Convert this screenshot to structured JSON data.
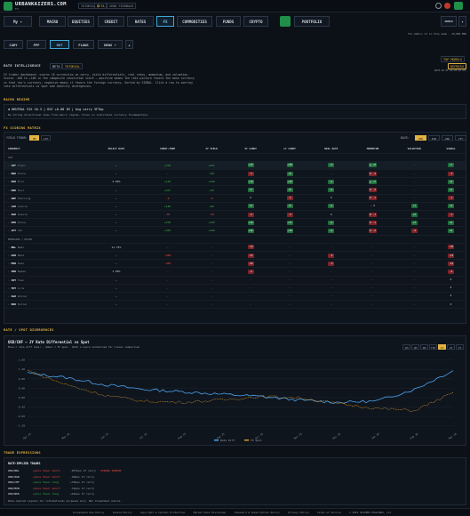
{
  "brand": {
    "name": "URBANKAIZERS.COM",
    "sub": "FX",
    "tags": [
      "TUTORIAL",
      "BETA",
      "SEND FEEDBACK"
    ]
  },
  "header": {
    "user_label": "ADMIN",
    "dropdown": "My"
  },
  "nav": [
    "MACRO",
    "EQUITIES",
    "CREDIT",
    "RATES",
    "FX",
    "COMMODITIES",
    "FUNDS",
    "CRYPTO"
  ],
  "nav_active": "FX",
  "portfolio_label": "PORTFOLIO",
  "status_line": "For Admin: 17 in this week · 19,000 ERK",
  "tabs": [
    "CARY",
    "PPP",
    "ROT",
    "FLOWS",
    "NEWS"
  ],
  "tab_active": "ROT",
  "rate_intel": {
    "title": "RATE INTELLIGENCE",
    "badges": [
      "BETA",
      "TUTORIAL"
    ],
    "desc": "FX trader dashboard: scores 18 currencies on carry, yield differentials, real rates, momentum, and valuation. Scores -100 to +100 in the composite conviction score — positive means the rate picture favors the base currency vs that row's currency; negative means it favors the foreign currency. Sorted by SIGNAL. Click a row to overlay rate differentials vs spot and identify divergences.",
    "right": [
      "TOP MODELS",
      "REFRESH"
    ],
    "updated": "DATA AS OF 02:43:10 UTC"
  },
  "macro_regime": {
    "title": "MACRO REGIME",
    "line": "NEUTRAL  VIX 16.3 | DXY +0.08 1M | Avg carry 3F7bp",
    "sub": "No strong directional bias from macro regime. Focus on individual currency fundamentals."
  },
  "matrix": {
    "title": "FX SCORING MATRIX",
    "yield_tenor_label": "YIELD TENOR:",
    "tenors": [
      "3M",
      "10Y"
    ],
    "base_label": "BASE:",
    "bases": [
      "USD",
      "EUR",
      "GBP",
      "JPY"
    ],
    "columns": [
      "CURRENCY",
      "POLICY RATE",
      "SHORT-TERM",
      "2Y YIELD",
      "ST CARRY",
      "LT CARRY",
      "REAL RATE",
      "MOMENTUM",
      "VALUATION",
      "SIGNAL"
    ],
    "group1": "G10",
    "group2": "EMERGING / MAJOR",
    "rows": [
      {
        "ccy": "CHF",
        "name": "Franc",
        "policy": "—",
        "short": "+276",
        "y2": "+351",
        "st": "+33",
        "lt": "+38",
        "real": "+3",
        "mom": "▲ +8",
        "val": "—",
        "sig": "+7"
      },
      {
        "ccy": "NOK",
        "name": "Krone",
        "policy": "—",
        "short": "—",
        "y2": "+58",
        "st": "-3",
        "lt": "+8",
        "real": "—",
        "mom": "▼ -4",
        "val": "—",
        "sig": "-3"
      },
      {
        "ccy": "EUR",
        "name": "Euro",
        "policy": "2.00%",
        "short": "+162",
        "y2": "+228",
        "st": "+14",
        "lt": "+18",
        "real": "+1",
        "mom": "▲ +2",
        "val": "—",
        "sig": "+6"
      },
      {
        "ccy": "NZD",
        "name": "Kiwi",
        "policy": "—",
        "short": "+017",
        "y2": "+20",
        "st": "+3",
        "lt": "+6",
        "real": "+1",
        "mom": "▼ -2",
        "val": "—",
        "sig": "+2"
      },
      {
        "ccy": "GBP",
        "name": "Sterling",
        "policy": "—",
        "short": "-9",
        "y2": "-9",
        "st": "0",
        "lt": "-1",
        "real": "0",
        "mom": "▼ -1",
        "val": "—",
        "sig": "-1"
      },
      {
        "ccy": "CAD",
        "name": "Loonie",
        "policy": "—",
        "short": "+146",
        "y2": "+90",
        "st": "+9",
        "lt": "+5",
        "real": "+1",
        "mom": "— 0",
        "val": "+1",
        "sig": "+4"
      },
      {
        "ccy": "AUD",
        "name": "Aussie",
        "policy": "—",
        "short": "-36",
        "y2": "-30",
        "st": "-2",
        "lt": "-3",
        "real": "0",
        "mom": "▼ -1",
        "val": "+2",
        "sig": "-1"
      },
      {
        "ccy": "SEK",
        "name": "Krona",
        "policy": "—",
        "short": "+270",
        "y2": "+259",
        "st": "+16",
        "lt": "+17",
        "real": "+2",
        "mom": "▼ -1",
        "val": "+3",
        "sig": "+6"
      },
      {
        "ccy": "JPY",
        "name": "Yen",
        "policy": "—",
        "short": "+363",
        "y2": "+340",
        "st": "+22",
        "lt": "+19",
        "real": "+4",
        "mom": "▼ -2",
        "val": "-4",
        "sig": "+6"
      }
    ],
    "rows2": [
      {
        "ccy": "BRL",
        "name": "Real",
        "policy": "11.75%",
        "short": "—",
        "y2": "—",
        "st": "-13",
        "lt": "—",
        "real": "—",
        "mom": "—",
        "val": "—",
        "sig": "-10"
      },
      {
        "ccy": "ZAR",
        "name": "Rand",
        "policy": "—",
        "short": "-283",
        "y2": "—",
        "st": "-17",
        "lt": "—",
        "real": "-5",
        "mom": "—",
        "val": "—",
        "sig": "-13"
      },
      {
        "ccy": "MXN",
        "name": "Peso",
        "policy": "—",
        "short": "-363",
        "y2": "—",
        "st": "-22",
        "lt": "—",
        "real": "-3",
        "mom": "—",
        "val": "—",
        "sig": "-14"
      },
      {
        "ccy": "INR",
        "name": "Rupee",
        "policy": "1.00%",
        "short": "—",
        "y2": "—",
        "st": "-2",
        "lt": "—",
        "real": "—",
        "mom": "—",
        "val": "—",
        "sig": "-2"
      },
      {
        "ccy": "CNY",
        "name": "Yuan",
        "policy": "—",
        "short": "—",
        "y2": "—",
        "st": "—",
        "lt": "—",
        "real": "—",
        "mom": "—",
        "val": "—",
        "sig": "0"
      },
      {
        "ccy": "TRY",
        "name": "Lira",
        "policy": "—",
        "short": "—",
        "y2": "—",
        "st": "—",
        "lt": "—",
        "real": "—",
        "mom": "—",
        "val": "—",
        "sig": "0"
      },
      {
        "ccy": "SGD",
        "name": "Dollar",
        "policy": "—",
        "short": "—",
        "y2": "—",
        "st": "—",
        "lt": "—",
        "real": "—",
        "mom": "—",
        "val": "—",
        "sig": "0"
      },
      {
        "ccy": "HKD",
        "name": "Dollar",
        "policy": "—",
        "short": "—",
        "y2": "—",
        "st": "—",
        "lt": "—",
        "real": "—",
        "mom": "—",
        "val": "—",
        "sig": "0"
      }
    ]
  },
  "divergence": {
    "section": "RATE / SPOT DIVERGENCES",
    "title": "USD/CHF — 2Y Rate Differential vs Spot",
    "sub": "Blue = rate diff (bps) · Amber = FX spot · Both z-score normalized for visual comparison",
    "ranges": [
      "1M",
      "3M",
      "6M",
      "YTD",
      "1Y",
      "2Y",
      "5Y"
    ],
    "range_active": "1Y"
  },
  "chart_data": {
    "type": "line",
    "x": [
      "Apr 25",
      "May 25",
      "Jun 25",
      "Jul 25",
      "Aug 25",
      "Sep 25",
      "Oct 25",
      "Nov 25",
      "Dec 25",
      "Jan 26",
      "Feb 26",
      "Mar 26"
    ],
    "yticks": [
      "1.60",
      "1.20",
      "0.80",
      "0.40",
      "0.00",
      "-0.40",
      "-0.80",
      "-1.20"
    ],
    "ylim": [
      -1.4,
      1.7
    ],
    "legend": [
      "Rate Diff",
      "FX Spot"
    ],
    "series": [
      {
        "name": "Rate Diff",
        "color": "#4aa3f0",
        "values": [
          1.05,
          0.85,
          0.55,
          0.35,
          0.25,
          0.15,
          0.05,
          -0.1,
          -0.2,
          -0.15,
          0.35,
          1.15
        ]
      },
      {
        "name": "FX Spot",
        "color": "#d9962c",
        "values": [
          1.15,
          0.55,
          0.1,
          -0.15,
          -0.2,
          -0.1,
          0.05,
          0.0,
          -0.25,
          -0.45,
          -0.55,
          0.2
        ]
      }
    ]
  },
  "trade": {
    "section": "TRADE EXPRESSIONS",
    "header": "RATE-IMPLIED TRADES",
    "rows": [
      {
        "pair": "USD/BRL",
        "dir": "+plus favor short",
        "note": "-057bps 1Y carry",
        "tag": "STRONG SPREAD"
      },
      {
        "pair": "USD/ZAR",
        "dir": "+plus favor short",
        "note": "-29bps 1Y carry",
        "tag": ""
      },
      {
        "pair": "USD/CHF",
        "dir": "+plus favor long",
        "note": "+76bps 1Y carry",
        "tag": ""
      },
      {
        "pair": "USD/MXN",
        "dir": "+plus favor short",
        "note": "-31bps 1Y carry",
        "tag": ""
      },
      {
        "pair": "USD/NOK",
        "dir": "+plus favor long",
        "note": "+91bps 1Y carry",
        "tag": ""
      }
    ],
    "foot": "Rate-implied signals for informational purposes only. Not investment advice."
  },
  "footer": [
    "Acceptable Use Policy",
    "Cookie Policy",
    "Copyright & Content Protection",
    "Market Data Disclaimer",
    "Password & Subscription Policy",
    "Privacy Policy",
    "Terms of Service",
    "© 2025 KAIZERS HOLDINGS, LLC"
  ]
}
